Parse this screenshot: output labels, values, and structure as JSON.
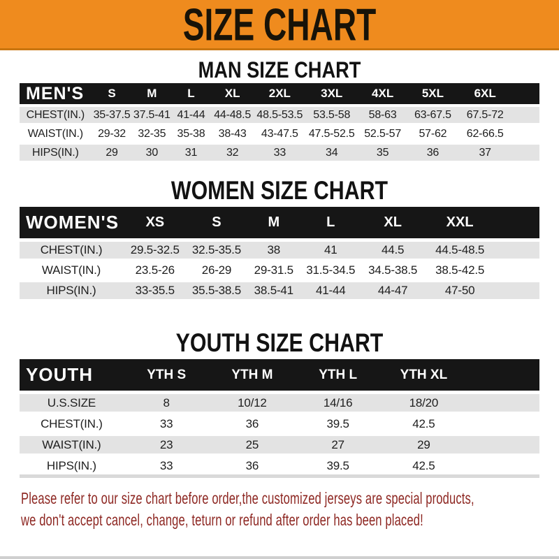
{
  "banner": {
    "title": "SIZE CHART"
  },
  "headings": {
    "men": "MAN SIZE CHART",
    "women": "WOMEN SIZE CHART",
    "youth": "YOUTH SIZE CHART"
  },
  "tables": {
    "men": {
      "corner": "MEN'S",
      "sizes": [
        "S",
        "M",
        "L",
        "XL",
        "2XL",
        "3XL",
        "4XL",
        "5XL",
        "6XL"
      ],
      "rows": [
        {
          "label": "CHEST(IN.)",
          "values": [
            "35-37.5",
            "37.5-41",
            "41-44",
            "44-48.5",
            "48.5-53.5",
            "53.5-58",
            "58-63",
            "63-67.5",
            "67.5-72"
          ]
        },
        {
          "label": "WAIST(IN.)",
          "values": [
            "29-32",
            "32-35",
            "35-38",
            "38-43",
            "43-47.5",
            "47.5-52.5",
            "52.5-57",
            "57-62",
            "62-66.5"
          ]
        },
        {
          "label": "HIPS(IN.)",
          "values": [
            "29",
            "30",
            "31",
            "32",
            "33",
            "34",
            "35",
            "36",
            "37"
          ]
        }
      ]
    },
    "women": {
      "corner": "WOMEN'S",
      "sizes": [
        "XS",
        "S",
        "M",
        "L",
        "XL",
        "XXL"
      ],
      "rows": [
        {
          "label": "CHEST(IN.)",
          "values": [
            "29.5-32.5",
            "32.5-35.5",
            "38",
            "41",
            "44.5",
            "44.5-48.5"
          ]
        },
        {
          "label": "WAIST(IN.)",
          "values": [
            "23.5-26",
            "26-29",
            "29-31.5",
            "31.5-34.5",
            "34.5-38.5",
            "38.5-42.5"
          ]
        },
        {
          "label": "HIPS(IN.)",
          "values": [
            "33-35.5",
            "35.5-38.5",
            "38.5-41",
            "41-44",
            "44-47",
            "47-50"
          ]
        }
      ]
    },
    "youth": {
      "corner": "YOUTH",
      "sizes": [
        "YTH S",
        "YTH M",
        "YTH L",
        "YTH XL"
      ],
      "rows": [
        {
          "label": "U.S.SIZE",
          "values": [
            "8",
            "10/12",
            "14/16",
            "18/20"
          ]
        },
        {
          "label": "CHEST(IN.)",
          "values": [
            "33",
            "36",
            "39.5",
            "42.5"
          ]
        },
        {
          "label": "WAIST(IN.)",
          "values": [
            "23",
            "25",
            "27",
            "29"
          ]
        },
        {
          "label": "HIPS(IN.)",
          "values": [
            "33",
            "36",
            "39.5",
            "42.5"
          ]
        }
      ]
    }
  },
  "footer": {
    "line1": "Please refer to our size chart before order,the customized jerseys are special products,",
    "line2": "we don't accept cancel, change, teturn or refund after order has been placed!"
  },
  "colors": {
    "banner_bg": "#ef8b1e",
    "banner_edge": "#c9750f",
    "bar_bg": "#161616",
    "bar_text": "#ffffff",
    "row_shade": "#e3e3e3",
    "text": "#1e1e1e",
    "heading": "#121212",
    "footer_red": "#8e2823"
  }
}
